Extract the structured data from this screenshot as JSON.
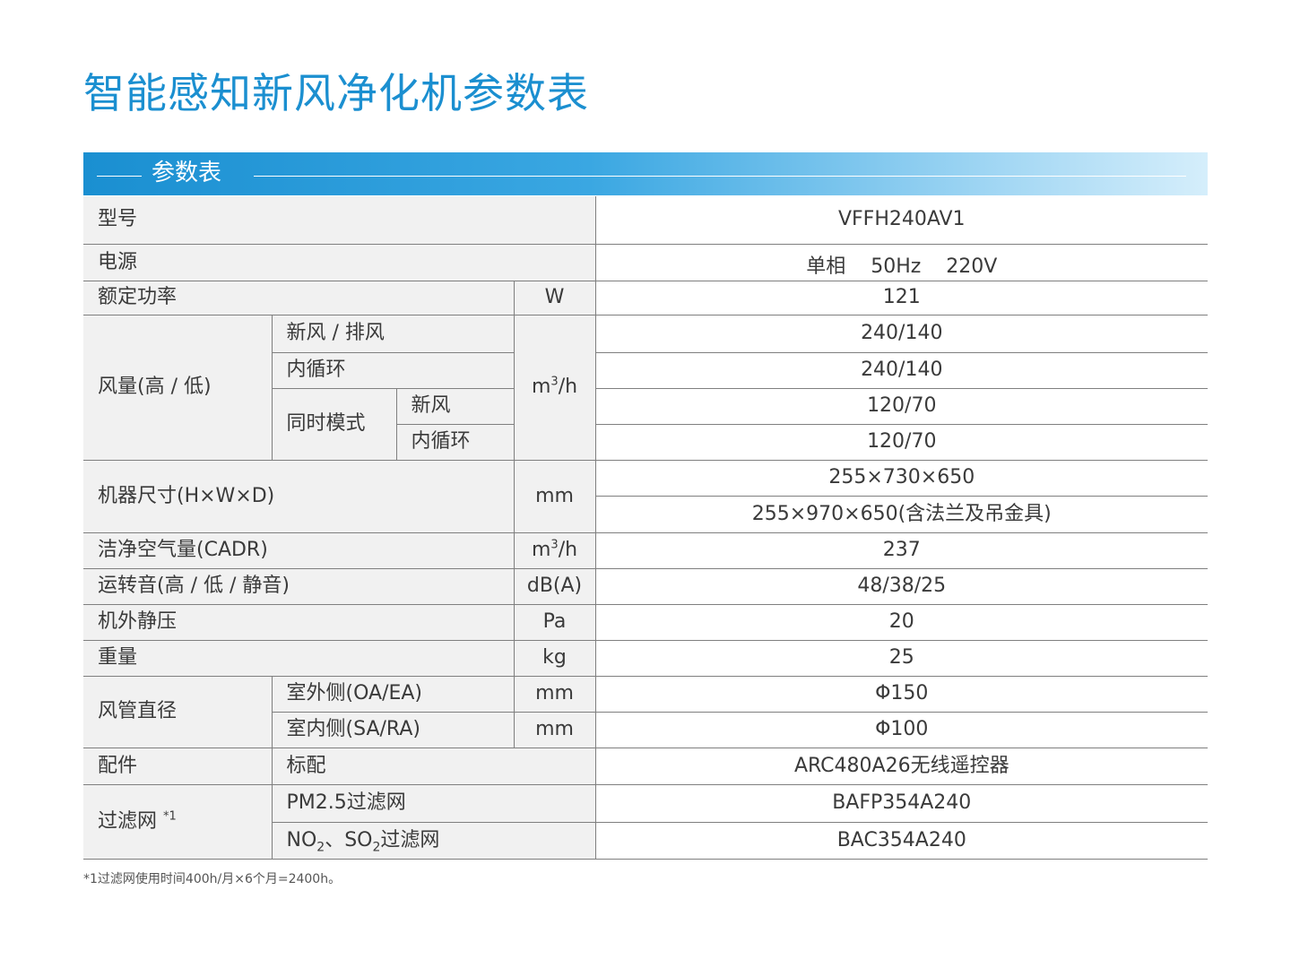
{
  "title": "智能感知新风净化机参数表",
  "section_label": "参数表",
  "rows": {
    "model": {
      "label": "型号",
      "value": "VFFH240AV1"
    },
    "power": {
      "label": "电源",
      "value_phase": "单相",
      "value_freq": "50Hz",
      "value_volt": "220V"
    },
    "rated_power": {
      "label": "额定功率",
      "unit": "W",
      "value": "121"
    },
    "airflow": {
      "label": "风量(高 / 低)",
      "unit_base": "m",
      "unit_sup": "3",
      "unit_tail": "/h",
      "fresh_exhaust": {
        "label": "新风 / 排风",
        "value": "240/140"
      },
      "recirc": {
        "label": "内循环",
        "value": "240/140"
      },
      "simul": {
        "label": "同时模式",
        "fresh": {
          "label": "新风",
          "value": "120/70"
        },
        "recirc": {
          "label": "内循环",
          "value": "120/70"
        }
      }
    },
    "dimensions": {
      "label": "机器尺寸(H×W×D)",
      "unit": "mm",
      "value1": "255×730×650",
      "value2": "255×970×650(含法兰及吊金具)"
    },
    "cadr": {
      "label": "洁净空气量(CADR)",
      "unit_base": "m",
      "unit_sup": "3",
      "unit_tail": "/h",
      "value": "237"
    },
    "noise": {
      "label": "运转音(高 / 低 / 静音)",
      "unit": "dB(A)",
      "value": "48/38/25"
    },
    "static_pressure": {
      "label": "机外静压",
      "unit": "Pa",
      "value": "20"
    },
    "weight": {
      "label": "重量",
      "unit": "kg",
      "value": "25"
    },
    "duct": {
      "label": "风管直径",
      "outdoor": {
        "label": "室外侧(OA/EA)",
        "unit": "mm",
        "value": "Φ150"
      },
      "indoor": {
        "label": "室内侧(SA/RA)",
        "unit": "mm",
        "value": "Φ100"
      }
    },
    "accessory": {
      "label": "配件",
      "sub": "标配",
      "value": "ARC480A26无线遥控器"
    },
    "filter": {
      "label": "过滤网",
      "mark": "*1",
      "pm25": {
        "label": "PM2.5过滤网",
        "value": "BAFP354A240"
      },
      "no2": {
        "label_a": "NO",
        "label_a_sub": "2",
        "label_b": "、SO",
        "label_b_sub": "2",
        "label_c": "过滤网",
        "value": "BAC354A240"
      }
    }
  },
  "footnote": "*1过滤网使用时间400h/月×6个月=2400h。"
}
